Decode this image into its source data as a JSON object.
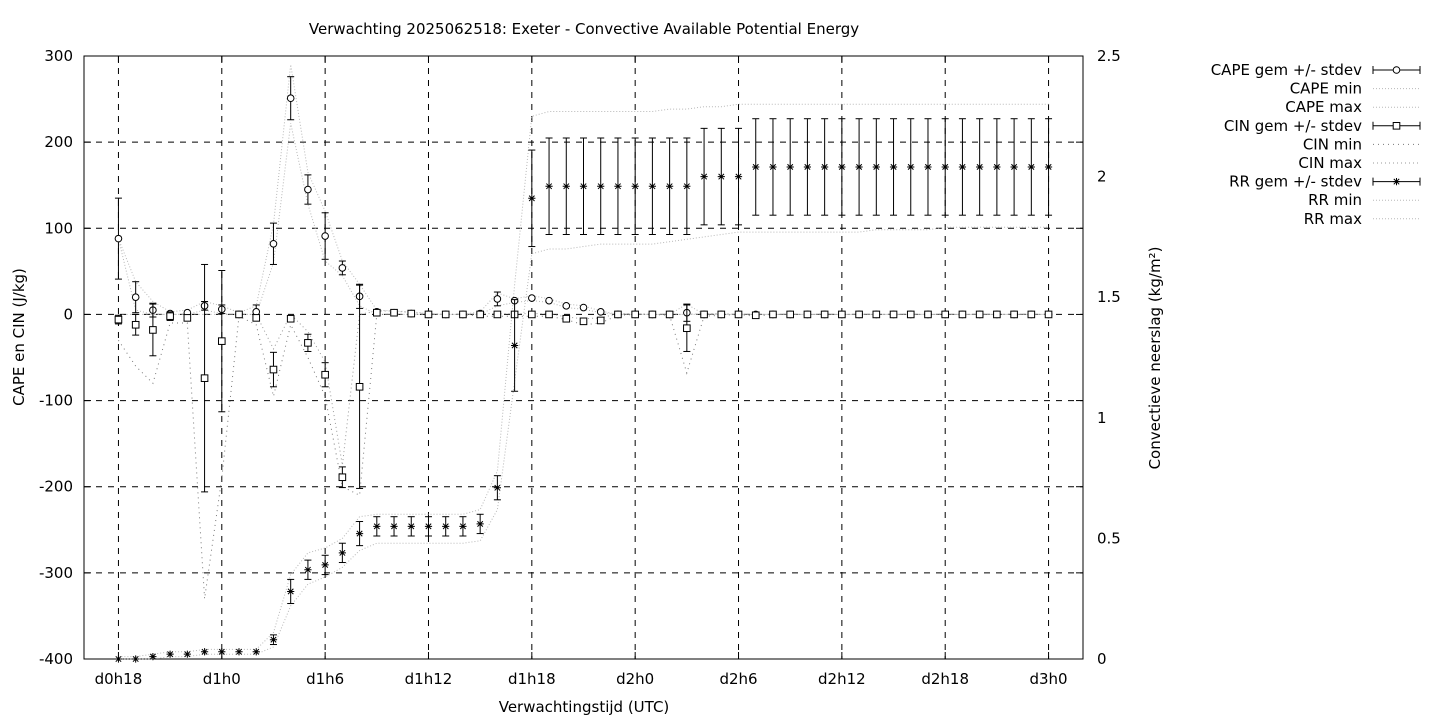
{
  "chart_data": {
    "type": "line",
    "title": "Verwachting 2025062518: Exeter - Convective Available Potential Energy",
    "xlabel": "Verwachtingstijd (UTC)",
    "ylabel": "CAPE en CIN (J/kg)",
    "y2label": "Convectieve neerslag (kg/m²)",
    "x_step_hours": 1,
    "x_ticks": [
      {
        "label": "d0h18",
        "hour": 0
      },
      {
        "label": "d1h0",
        "hour": 6
      },
      {
        "label": "d1h6",
        "hour": 12
      },
      {
        "label": "d1h12",
        "hour": 18
      },
      {
        "label": "d1h18",
        "hour": 24
      },
      {
        "label": "d2h0",
        "hour": 30
      },
      {
        "label": "d2h6",
        "hour": 36
      },
      {
        "label": "d2h12",
        "hour": 42
      },
      {
        "label": "d2h18",
        "hour": 48
      },
      {
        "label": "d3h0",
        "hour": 54
      }
    ],
    "xlim": [
      -2,
      56
    ],
    "ylim": [
      -400,
      300
    ],
    "yticks": [
      -400,
      -300,
      -200,
      -100,
      0,
      100,
      200,
      300
    ],
    "y2lim": [
      0,
      2.5
    ],
    "y2ticks": [
      0,
      0.5,
      1,
      1.5,
      2,
      2.5
    ],
    "grid": true,
    "legend_position": "outside-right",
    "colors": {
      "grid": "#000000",
      "min_max_lines": "#aaaaaa",
      "markers": "#000000"
    },
    "series": [
      {
        "name": "CAPE gem +/- stdev",
        "marker": "circle",
        "axis": "y1",
        "mean": [
          88,
          20,
          5,
          1,
          2,
          10,
          6,
          0,
          3,
          82,
          251,
          145,
          91,
          54,
          21,
          3,
          2,
          1,
          0,
          0,
          0,
          1,
          18,
          16,
          19,
          16,
          10,
          8,
          3,
          0,
          0,
          0,
          0,
          2,
          0,
          0,
          0,
          0,
          0,
          0,
          0,
          0,
          0,
          0,
          0,
          0,
          0,
          0,
          0,
          0,
          0,
          0,
          0,
          0,
          0
        ],
        "stdev": [
          47,
          18,
          8,
          2,
          3,
          5,
          5,
          1,
          8,
          24,
          25,
          17,
          27,
          8,
          14,
          3,
          2,
          2,
          1,
          0,
          0,
          2,
          8,
          2,
          2,
          2,
          1,
          1,
          1,
          0,
          0,
          0,
          0,
          10,
          0,
          0,
          0,
          0,
          0,
          0,
          0,
          0,
          0,
          0,
          0,
          0,
          0,
          0,
          0,
          0,
          0,
          0,
          0,
          0,
          0
        ]
      },
      {
        "name": "CAPE min",
        "axis": "y1",
        "values": [
          88,
          5,
          0,
          0,
          0,
          5,
          1,
          0,
          0,
          60,
          222,
          128,
          62,
          45,
          10,
          0,
          0,
          0,
          0,
          0,
          0,
          0,
          10,
          14,
          16,
          14,
          8,
          6,
          2,
          0,
          0,
          0,
          0,
          0,
          0,
          0,
          0,
          0,
          0,
          0,
          0,
          0,
          0,
          0,
          0,
          0,
          0,
          0,
          0,
          0,
          0,
          0,
          0,
          0,
          0
        ]
      },
      {
        "name": "CAPE max",
        "axis": "y1",
        "values": [
          88,
          38,
          15,
          3,
          5,
          15,
          10,
          2,
          10,
          105,
          290,
          165,
          120,
          62,
          35,
          5,
          4,
          3,
          1,
          0,
          0,
          3,
          25,
          18,
          22,
          18,
          12,
          10,
          4,
          0,
          0,
          0,
          0,
          12,
          0,
          0,
          0,
          0,
          0,
          0,
          0,
          0,
          0,
          0,
          0,
          0,
          0,
          0,
          0,
          0,
          0,
          0,
          0,
          0,
          0
        ]
      },
      {
        "name": "CIN gem +/- stdev",
        "marker": "square",
        "axis": "y1",
        "mean": [
          -6,
          -12,
          -18,
          -2,
          -4,
          -74,
          -31,
          0,
          -4,
          -64,
          -5,
          -33,
          -70,
          -189,
          -84,
          2,
          2,
          1,
          0,
          0,
          0,
          0,
          0,
          0,
          0,
          0,
          -5,
          -8,
          -7,
          0,
          0,
          0,
          0,
          -16,
          0,
          0,
          0,
          -1,
          0,
          0,
          0,
          0,
          0,
          0,
          0,
          0,
          0,
          0,
          0,
          0,
          0,
          0,
          0,
          0,
          0
        ],
        "stdev": [
          5,
          12,
          30,
          5,
          4,
          132,
          82,
          1,
          4,
          20,
          3,
          10,
          14,
          12,
          118,
          3,
          3,
          2,
          1,
          0,
          0,
          1,
          1,
          1,
          1,
          1,
          1,
          2,
          2,
          0,
          0,
          0,
          0,
          27,
          0,
          0,
          0,
          1,
          0,
          0,
          0,
          0,
          0,
          0,
          0,
          0,
          0,
          0,
          0,
          0,
          0,
          0,
          0,
          0,
          0
        ]
      },
      {
        "name": "CIN min",
        "axis": "y1",
        "values": [
          -30,
          -60,
          -80,
          -10,
          -10,
          -330,
          -190,
          -2,
          -12,
          -95,
          -12,
          -50,
          -95,
          -200,
          -210,
          0,
          0,
          0,
          0,
          0,
          0,
          -2,
          -2,
          -2,
          -2,
          -2,
          -6,
          -12,
          -10,
          -1,
          0,
          0,
          -1,
          -68,
          -2,
          -1,
          0,
          -2,
          0,
          0,
          0,
          0,
          0,
          0,
          0,
          0,
          0,
          0,
          0,
          0,
          0,
          0,
          0,
          0,
          0
        ]
      },
      {
        "name": "CIN max",
        "axis": "y1",
        "values": [
          0,
          0,
          0,
          0,
          0,
          0,
          0,
          0,
          0,
          -40,
          0,
          -20,
          -55,
          -175,
          0,
          4,
          4,
          2,
          1,
          0,
          0,
          1,
          1,
          1,
          1,
          1,
          -3,
          -5,
          -4,
          1,
          1,
          0,
          0,
          0,
          1,
          1,
          0,
          0,
          0,
          0,
          0,
          0,
          0,
          0,
          0,
          0,
          0,
          0,
          0,
          0,
          0,
          0,
          0,
          0,
          0
        ]
      },
      {
        "name": "RR gem +/- stdev",
        "marker": "star",
        "axis": "y2",
        "mean": [
          0,
          0,
          0.01,
          0.02,
          0.02,
          0.03,
          0.03,
          0.03,
          0.03,
          0.08,
          0.28,
          0.37,
          0.39,
          0.44,
          0.52,
          0.55,
          0.55,
          0.55,
          0.55,
          0.55,
          0.55,
          0.56,
          0.71,
          1.3,
          1.91,
          1.96,
          1.96,
          1.96,
          1.96,
          1.96,
          1.96,
          1.96,
          1.96,
          1.96,
          2.0,
          2.0,
          2.0,
          2.04,
          2.04,
          2.04,
          2.04,
          2.04,
          2.04,
          2.04,
          2.04,
          2.04,
          2.04,
          2.04,
          2.04,
          2.04,
          2.04,
          2.04,
          2.04,
          2.04,
          2.04
        ],
        "stdev": [
          0,
          0,
          0,
          0,
          0,
          0,
          0,
          0,
          0,
          0.02,
          0.05,
          0.04,
          0.04,
          0.04,
          0.05,
          0.04,
          0.04,
          0.04,
          0.04,
          0.04,
          0.04,
          0.04,
          0.05,
          0.19,
          0.2,
          0.2,
          0.2,
          0.2,
          0.2,
          0.2,
          0.2,
          0.2,
          0.2,
          0.2,
          0.2,
          0.2,
          0.2,
          0.2,
          0.2,
          0.2,
          0.2,
          0.2,
          0.2,
          0.2,
          0.2,
          0.2,
          0.2,
          0.2,
          0.2,
          0.2,
          0.2,
          0.2,
          0.2,
          0.2,
          0.2
        ]
      },
      {
        "name": "RR min",
        "axis": "y2",
        "values": [
          0,
          0,
          0,
          0.01,
          0.01,
          0.02,
          0.02,
          0.02,
          0.02,
          0.05,
          0.22,
          0.31,
          0.34,
          0.38,
          0.45,
          0.48,
          0.48,
          0.48,
          0.48,
          0.48,
          0.48,
          0.49,
          0.62,
          1.15,
          1.68,
          1.7,
          1.7,
          1.71,
          1.72,
          1.72,
          1.72,
          1.72,
          1.73,
          1.74,
          1.75,
          1.76,
          1.77,
          1.77,
          1.77,
          1.77,
          1.77,
          1.77,
          1.77,
          1.77,
          1.78,
          1.78,
          1.78,
          1.78,
          1.79,
          1.79,
          1.79,
          1.79,
          1.79,
          1.79,
          1.79
        ]
      },
      {
        "name": "RR max",
        "axis": "y2",
        "values": [
          0.01,
          0.01,
          0.02,
          0.03,
          0.03,
          0.04,
          0.04,
          0.04,
          0.04,
          0.11,
          0.35,
          0.44,
          0.46,
          0.5,
          0.59,
          0.6,
          0.6,
          0.6,
          0.6,
          0.6,
          0.6,
          0.62,
          0.78,
          1.55,
          2.25,
          2.27,
          2.27,
          2.27,
          2.27,
          2.27,
          2.27,
          2.27,
          2.28,
          2.28,
          2.29,
          2.29,
          2.3,
          2.3,
          2.3,
          2.3,
          2.3,
          2.3,
          2.3,
          2.3,
          2.3,
          2.3,
          2.3,
          2.3,
          2.3,
          2.3,
          2.3,
          2.3,
          2.3,
          2.3,
          2.3
        ]
      }
    ]
  }
}
